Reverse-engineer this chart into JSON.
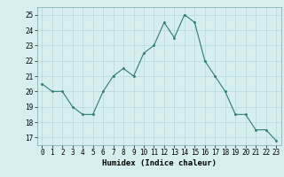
{
  "x": [
    0,
    1,
    2,
    3,
    4,
    5,
    6,
    7,
    8,
    9,
    10,
    11,
    12,
    13,
    14,
    15,
    16,
    17,
    18,
    19,
    20,
    21,
    22,
    23
  ],
  "y": [
    20.5,
    20.0,
    20.0,
    19.0,
    18.5,
    18.5,
    20.0,
    21.0,
    21.5,
    21.0,
    22.5,
    23.0,
    24.5,
    23.5,
    25.0,
    24.5,
    22.0,
    21.0,
    20.0,
    18.5,
    18.5,
    17.5,
    17.5,
    16.8
  ],
  "line_color": "#2e7d6e",
  "marker": "o",
  "marker_size": 1.5,
  "bg_color": "#d6eeee",
  "grid_color": "#b8d8d8",
  "xlabel": "Humidex (Indice chaleur)",
  "ylim": [
    16.5,
    25.5
  ],
  "xlim": [
    -0.5,
    23.5
  ],
  "yticks": [
    17,
    18,
    19,
    20,
    21,
    22,
    23,
    24,
    25
  ],
  "xticks": [
    0,
    1,
    2,
    3,
    4,
    5,
    6,
    7,
    8,
    9,
    10,
    11,
    12,
    13,
    14,
    15,
    16,
    17,
    18,
    19,
    20,
    21,
    22,
    23
  ],
  "label_fontsize": 6.5,
  "tick_fontsize": 5.5
}
